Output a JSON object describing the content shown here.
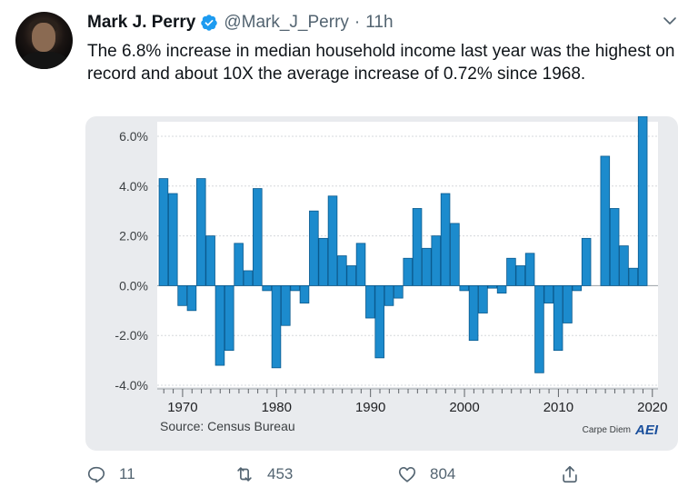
{
  "tweet": {
    "author_name": "Mark J. Perry",
    "handle": "@Mark_J_Perry",
    "separator": "·",
    "time": "11h",
    "text": "The 6.8% increase in median household income last year was the highest on record and about 10X the average increase of 0.72% since 1968."
  },
  "actions": {
    "replies": "11",
    "retweets": "453",
    "likes": "804"
  },
  "colors": {
    "bar": "#1c8bcd",
    "bar_edge": "#0b5a8e",
    "verified": "#1d9bf0",
    "card_bg": "#e9ebee"
  },
  "chart_data": {
    "type": "bar",
    "title": "",
    "xlabel": "",
    "ylabel": "",
    "source": "Source: Census Bureau",
    "branding": "Carpe Diem",
    "logo_text": "AEI",
    "ylim": [
      -4.0,
      7.0
    ],
    "yticks": [
      -4.0,
      -2.0,
      0.0,
      2.0,
      4.0,
      6.0
    ],
    "ytick_labels": [
      "-4.0%",
      "-2.0%",
      "0.0%",
      "2.0%",
      "4.0%",
      "6.0%"
    ],
    "xticks": [
      1970,
      1980,
      1990,
      2000,
      2010,
      2020
    ],
    "xtick_labels": [
      "1970",
      "1980",
      "1990",
      "2000",
      "2010",
      "2020"
    ],
    "years": [
      1968,
      1969,
      1970,
      1971,
      1972,
      1973,
      1974,
      1975,
      1976,
      1977,
      1978,
      1979,
      1980,
      1981,
      1982,
      1983,
      1984,
      1985,
      1986,
      1987,
      1988,
      1989,
      1990,
      1991,
      1992,
      1993,
      1994,
      1995,
      1996,
      1997,
      1998,
      1999,
      2000,
      2001,
      2002,
      2003,
      2004,
      2005,
      2006,
      2007,
      2008,
      2009,
      2010,
      2011,
      2012,
      2013,
      2014,
      2015,
      2016,
      2017,
      2018,
      2019
    ],
    "values": [
      4.3,
      3.7,
      -0.8,
      -1.0,
      4.3,
      2.0,
      -3.2,
      -2.6,
      1.7,
      0.6,
      3.9,
      -0.2,
      -3.3,
      -1.6,
      -0.2,
      -0.7,
      3.0,
      1.9,
      3.6,
      1.2,
      0.8,
      1.7,
      -1.3,
      -2.9,
      -0.8,
      -0.5,
      1.1,
      3.1,
      1.5,
      2.0,
      3.7,
      2.5,
      -0.2,
      -2.2,
      -1.1,
      -0.1,
      -0.3,
      1.1,
      0.8,
      1.3,
      -3.5,
      -0.7,
      -2.6,
      -1.5,
      -0.2,
      1.9,
      0.0,
      5.2,
      3.1,
      1.6,
      0.7,
      6.8
    ]
  }
}
